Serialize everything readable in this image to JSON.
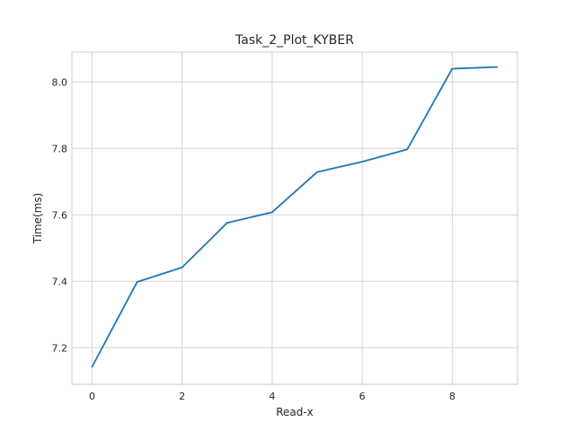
{
  "chart_data": {
    "type": "line",
    "title": "Task_2_Plot_KYBER",
    "xlabel": "Read-x",
    "ylabel": "Time(ms)",
    "xlim": [
      -0.45,
      9.45
    ],
    "ylim": [
      7.09,
      8.09
    ],
    "xticks": [
      0,
      2,
      4,
      6,
      8
    ],
    "xtick_labels": [
      "0",
      "2",
      "4",
      "6",
      "8"
    ],
    "yticks": [
      7.2,
      7.4,
      7.6,
      7.8,
      8.0
    ],
    "ytick_labels": [
      "7.2",
      "7.4",
      "7.6",
      "7.8",
      "8.0"
    ],
    "grid": true,
    "x": [
      0,
      1,
      2,
      3,
      4,
      5,
      6,
      7,
      8,
      9
    ],
    "series": [
      {
        "color": "#1f77b4",
        "values": [
          7.143,
          7.398,
          7.442,
          7.576,
          7.608,
          7.729,
          7.76,
          7.797,
          8.04,
          8.045
        ]
      }
    ]
  }
}
